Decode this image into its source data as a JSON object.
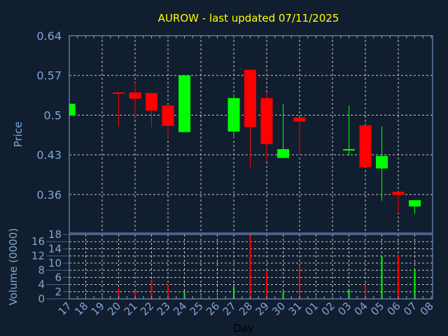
{
  "colors": {
    "background": "#111e2f",
    "axis": "#7fa6d4",
    "title": "#ffff00",
    "up": "#00ff00",
    "down": "#ff0000",
    "grid": "#c8c8c8",
    "xlabel": "#000000"
  },
  "chart_data": [
    {
      "type": "candlestick",
      "title": "AUROW - last updated 07/11/2025",
      "ylabel": "Price",
      "yticks": [
        "0.64",
        "0.57",
        "0.5",
        "0.43",
        "0.36"
      ],
      "ylim": [
        0.292,
        0.64
      ],
      "grid": true,
      "candles": [
        {
          "day": "17",
          "open": 0.499,
          "high": 0.52,
          "low": 0.499,
          "close": 0.52
        },
        {
          "day": "20",
          "open": 0.54,
          "high": 0.54,
          "low": 0.48,
          "close": 0.538
        },
        {
          "day": "21",
          "open": 0.54,
          "high": 0.557,
          "low": 0.497,
          "close": 0.529
        },
        {
          "day": "22",
          "open": 0.539,
          "high": 0.539,
          "low": 0.479,
          "close": 0.508
        },
        {
          "day": "23",
          "open": 0.517,
          "high": 0.517,
          "low": 0.459,
          "close": 0.481
        },
        {
          "day": "24",
          "open": 0.47,
          "high": 0.57,
          "low": 0.47,
          "close": 0.57
        },
        {
          "day": "27",
          "open": 0.471,
          "high": 0.535,
          "low": 0.459,
          "close": 0.53
        },
        {
          "day": "28",
          "open": 0.58,
          "high": 0.58,
          "low": 0.408,
          "close": 0.479
        },
        {
          "day": "29",
          "open": 0.53,
          "high": 0.54,
          "low": 0.418,
          "close": 0.449
        },
        {
          "day": "30",
          "open": 0.4245,
          "high": 0.52,
          "low": 0.4245,
          "close": 0.44
        },
        {
          "day": "31",
          "open": 0.4957,
          "high": 0.4957,
          "low": 0.429,
          "close": 0.4887
        },
        {
          "day": "03",
          "open": 0.438,
          "high": 0.5167,
          "low": 0.429,
          "close": 0.44
        },
        {
          "day": "04",
          "open": 0.482,
          "high": 0.482,
          "low": 0.408,
          "close": 0.408
        },
        {
          "day": "05",
          "open": 0.406,
          "high": 0.48,
          "low": 0.349,
          "close": 0.428
        },
        {
          "day": "06",
          "open": 0.365,
          "high": 0.365,
          "low": 0.328,
          "close": 0.359
        },
        {
          "day": "07",
          "open": 0.339,
          "high": 0.35,
          "low": 0.326,
          "close": 0.35
        }
      ]
    },
    {
      "type": "bar",
      "ylabel": "Volume (0000)",
      "xlabel": "Day",
      "yticks": [
        "0",
        "2",
        "4",
        "6",
        "8",
        "10",
        "12",
        "14",
        "16",
        "18"
      ],
      "ylim": [
        0,
        18
      ],
      "categories": [
        "17",
        "18",
        "19",
        "20",
        "21",
        "22",
        "23",
        "24",
        "25",
        "26",
        "27",
        "28",
        "29",
        "30",
        "31",
        "01",
        "02",
        "03",
        "04",
        "05",
        "06",
        "07",
        "08"
      ],
      "bars": [
        {
          "day": "20",
          "value": 2.9,
          "direction": "down"
        },
        {
          "day": "21",
          "value": 2.2,
          "direction": "down"
        },
        {
          "day": "22",
          "value": 5.4,
          "direction": "down"
        },
        {
          "day": "23",
          "value": 4.2,
          "direction": "down"
        },
        {
          "day": "24",
          "value": 1.9,
          "direction": "up"
        },
        {
          "day": "27",
          "value": 3.3,
          "direction": "up"
        },
        {
          "day": "28",
          "value": 18.0,
          "direction": "down"
        },
        {
          "day": "29",
          "value": 7.8,
          "direction": "down"
        },
        {
          "day": "30",
          "value": 1.9,
          "direction": "up"
        },
        {
          "day": "31",
          "value": 9.5,
          "direction": "down"
        },
        {
          "day": "03",
          "value": 2.7,
          "direction": "up"
        },
        {
          "day": "04",
          "value": 4.4,
          "direction": "down"
        },
        {
          "day": "05",
          "value": 12.0,
          "direction": "up"
        },
        {
          "day": "06",
          "value": 12.3,
          "direction": "down"
        },
        {
          "day": "07",
          "value": 8.1,
          "direction": "up"
        }
      ]
    }
  ]
}
